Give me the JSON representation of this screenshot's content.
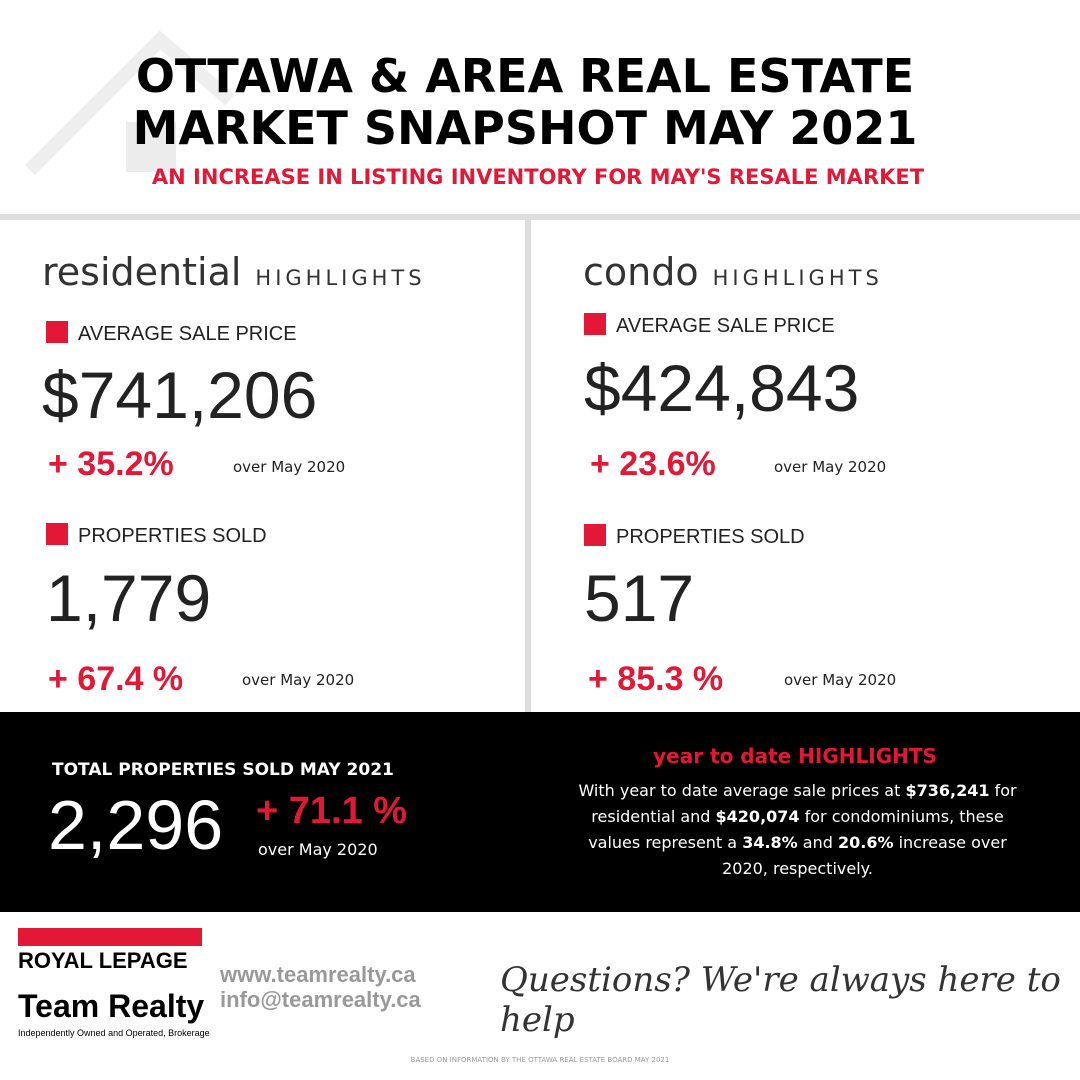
{
  "header": {
    "title": [
      "OTTAWA & AREA REAL ESTATE",
      "MARKET SNAPSHOT MAY 2021"
    ],
    "subtitle": "AN INCREASE IN LISTING INVENTORY FOR MAY'S RESALE MARKET"
  },
  "residential": {
    "name": "residential",
    "tag": "HIGHLIGHTS",
    "metrics": [
      {
        "label": "AVERAGE SALE PRICE",
        "value": "$741,206",
        "change": "+ 35.2%",
        "period": "over May 2020"
      },
      {
        "label": "PROPERTIES SOLD",
        "value": "1,779",
        "change": "+ 67.4 %",
        "period": "over May 2020"
      }
    ]
  },
  "condo": {
    "name": "condo",
    "tag": "HIGHLIGHTS",
    "metrics": [
      {
        "label": "AVERAGE SALE PRICE",
        "value": "$424,843",
        "change": "+ 23.6%",
        "period": "over May 2020"
      },
      {
        "label": "PROPERTIES SOLD",
        "value": "517",
        "change": "+ 85.3 %",
        "period": "over May 2020"
      }
    ]
  },
  "total": {
    "label": "TOTAL PROPERTIES SOLD MAY 2021",
    "value": "2,296",
    "change": "+ 71.1 %",
    "period": "over May 2020"
  },
  "ytd": {
    "title": "year to date HIGHLIGHTS",
    "text": [
      "With year to date average sale prices at ",
      "$736,241",
      " for residential and ",
      "$420,074",
      " for condominiums, these values represent a ",
      "34.8%",
      " and ",
      "20.6%",
      " increase over 2020, respectively."
    ]
  },
  "footer": {
    "brand": "ROYAL LEPAGE",
    "office": "Team Realty",
    "note": "Independently Owned and Operated, Brokerage",
    "website": "www.teamrealty.ca",
    "email": "info@teamrealty.ca",
    "tagline": "Questions? We're always here to help",
    "source": "BASED ON INFORMATION BY THE OTTAWA REAL ESTATE BOARD MAY 2021"
  }
}
